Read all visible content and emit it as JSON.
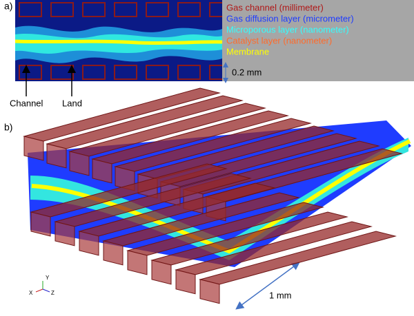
{
  "panel_a": {
    "label": "a)",
    "legend": [
      {
        "text": "Gas channel (millimeter)",
        "color": "#b01818"
      },
      {
        "text": "Gas diffusion layer (micrometer)",
        "color": "#1f3cff"
      },
      {
        "text": "Microporous layer (nanometer)",
        "color": "#33ffff"
      },
      {
        "text": "Catalyst layer (nanometer)",
        "color": "#ff6a2a"
      },
      {
        "text": "Membrane",
        "color": "#ffff00"
      }
    ],
    "scale_label": "0.2 mm",
    "annotations": [
      "Channel",
      "Land"
    ]
  },
  "panel_b": {
    "label": "b)",
    "scale_label": "1 mm",
    "axes": [
      "Y",
      "X",
      "Z"
    ]
  }
}
